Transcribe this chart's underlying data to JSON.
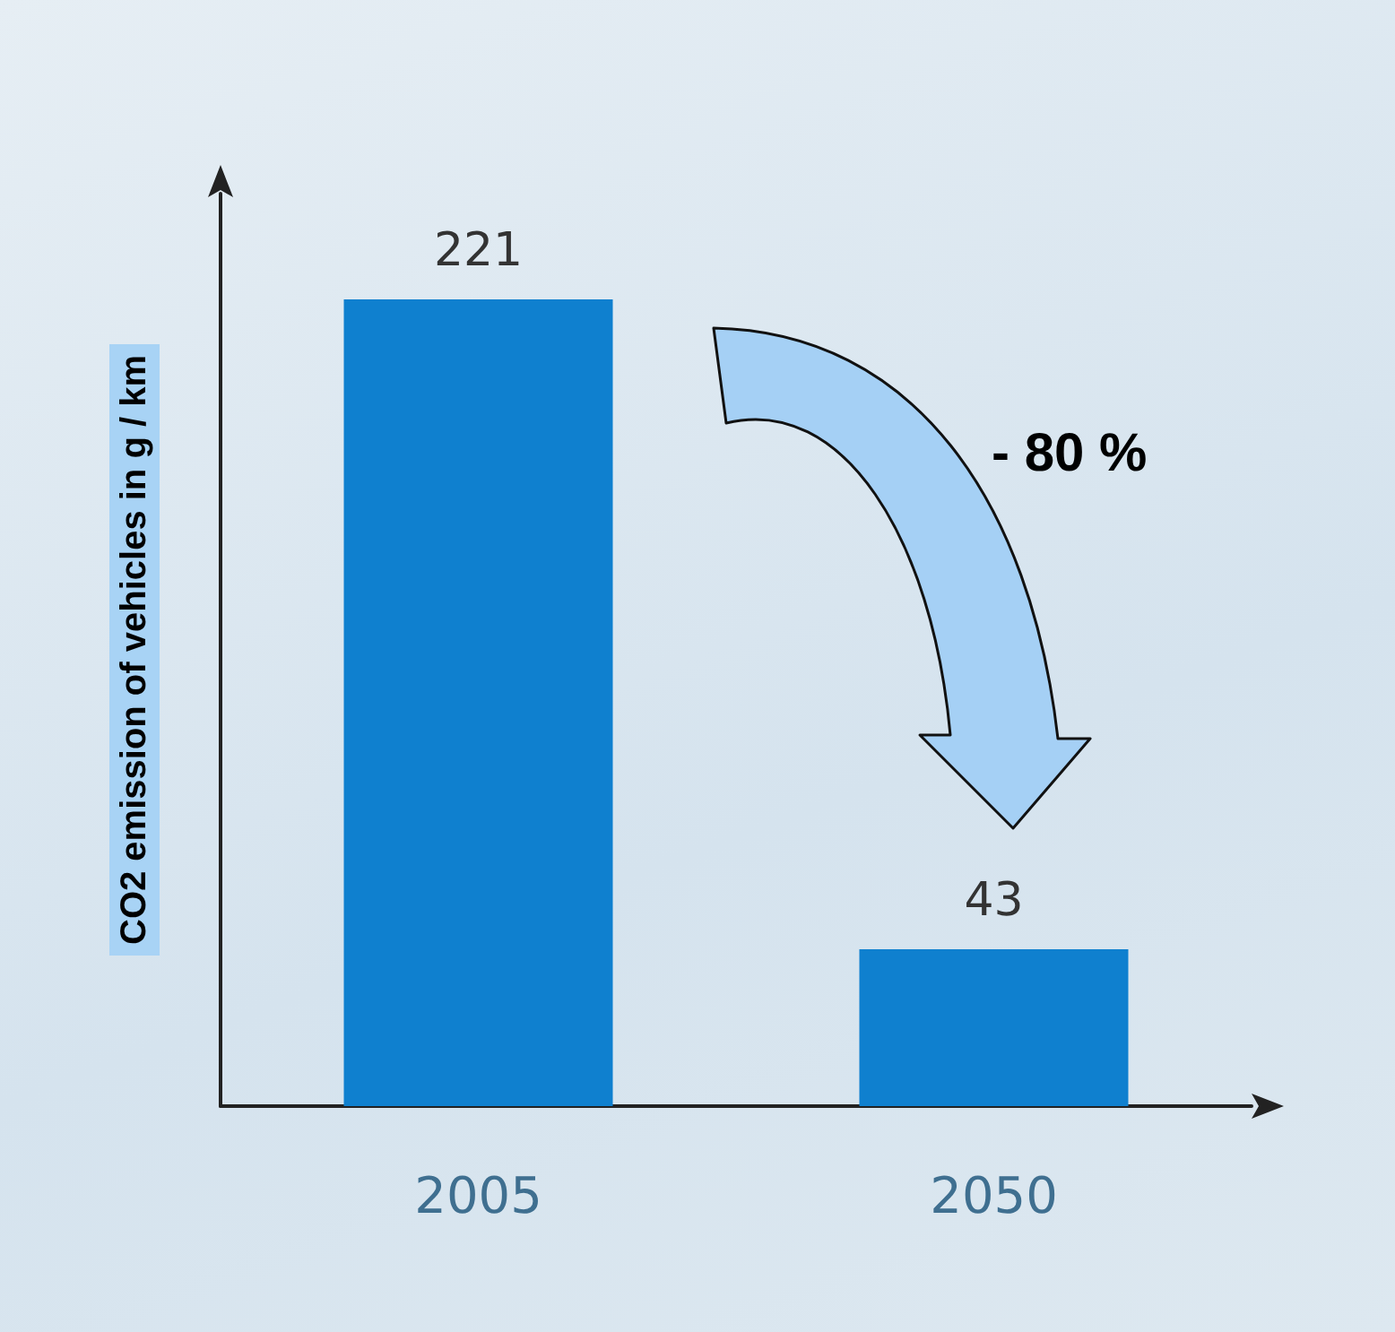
{
  "chart_data": {
    "type": "bar",
    "ylabel": "CO2 emission of vehicles in g / km",
    "categories": [
      "2005",
      "2050"
    ],
    "values": [
      221,
      43
    ],
    "color": "#0f80cf",
    "data_labels": true,
    "grid": false,
    "annotations": [
      "- 80 %"
    ]
  }
}
